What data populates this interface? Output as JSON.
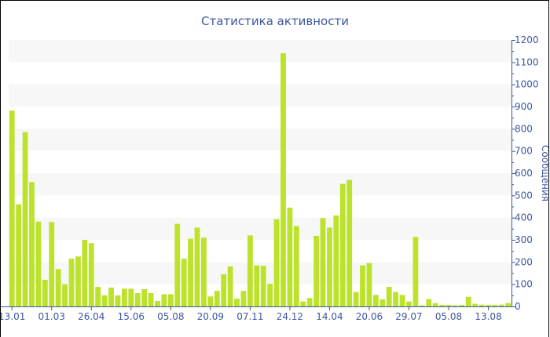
{
  "chart_data": {
    "type": "bar",
    "title": "Статистика активности",
    "xlabel": "",
    "ylabel": "Сообщения",
    "ylim": [
      0,
      1200
    ],
    "yticks": [
      0,
      100,
      200,
      300,
      400,
      500,
      600,
      700,
      800,
      900,
      1000,
      1100,
      1200
    ],
    "y_axis_side": "right",
    "grid": "alternating horizontal bands",
    "legend": "none",
    "bar_color": "#bde22c",
    "axis_color": "#3d57a0",
    "band_color": "#f7f7f7",
    "categories": [
      "13.01",
      "",
      "",
      "",
      "",
      "",
      "01.03",
      "",
      "",
      "",
      "",
      "",
      "26.04",
      "",
      "",
      "",
      "",
      "",
      "15.06",
      "",
      "",
      "",
      "",
      "",
      "05.08",
      "",
      "",
      "",
      "",
      "",
      "20.09",
      "",
      "",
      "",
      "",
      "",
      "07.11",
      "",
      "",
      "",
      "",
      "",
      "24.12",
      "",
      "",
      "",
      "",
      "",
      "14.04",
      "",
      "",
      "",
      "",
      "",
      "20.06",
      "",
      "",
      "",
      "",
      "",
      "29.07",
      "",
      "",
      "",
      "",
      "",
      "05.08",
      "",
      "",
      "",
      "",
      "",
      "13.08",
      "",
      "",
      ""
    ],
    "values": [
      882,
      460,
      785,
      560,
      382,
      120,
      380,
      168,
      100,
      215,
      225,
      300,
      285,
      88,
      50,
      85,
      50,
      80,
      80,
      60,
      78,
      60,
      25,
      55,
      55,
      372,
      215,
      305,
      355,
      310,
      45,
      70,
      145,
      180,
      35,
      70,
      320,
      185,
      183,
      102,
      393,
      1140,
      445,
      362,
      22,
      38,
      318,
      398,
      355,
      410,
      552,
      570,
      65,
      185,
      195,
      52,
      32,
      88,
      65,
      52,
      22,
      313,
      5,
      33,
      15,
      7,
      7,
      5,
      7,
      43,
      12,
      8,
      7,
      7,
      8,
      15
    ]
  }
}
